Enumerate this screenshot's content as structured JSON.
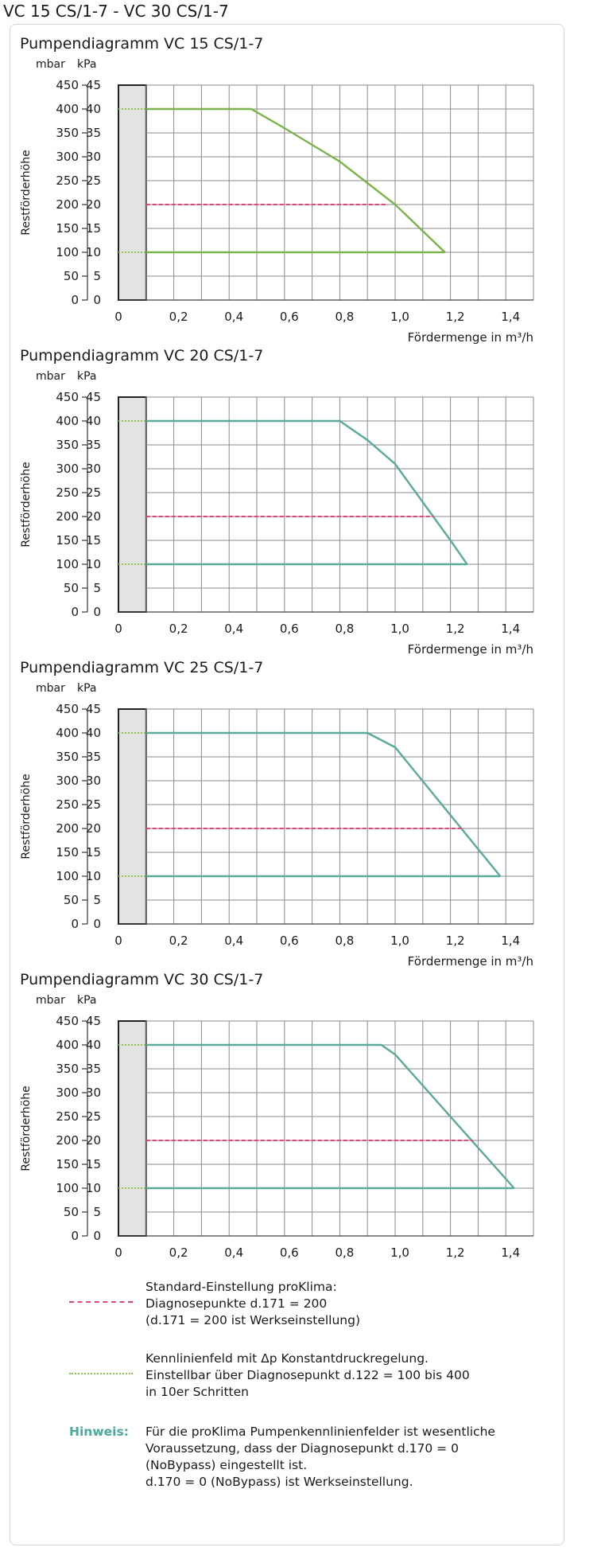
{
  "page": {
    "title": "VC 15 CS/1-7 - VC 30 CS/1-7"
  },
  "colors": {
    "standard": "#d9487f",
    "constant": "#8fc24a",
    "curve_vc15": "#7bb34a",
    "curve_other": "#5aa99b",
    "grid": "#8a8a8a",
    "shade": "#e3e3e3"
  },
  "chart_common": {
    "unit_left": "mbar",
    "unit_right": "kPa",
    "ylabel": "Restförderhöhe",
    "xlabel": "Fördermenge in m³/h",
    "y_ticks_mbar": [
      "450",
      "400",
      "350",
      "300",
      "250",
      "200",
      "150",
      "100",
      "50",
      "0"
    ],
    "y_ticks_kpa": [
      "45",
      "40",
      "35",
      "30",
      "25",
      "20",
      "15",
      "10",
      "5",
      "0"
    ],
    "x_ticks": [
      "0",
      "0,2",
      "0,4",
      "0,6",
      "0,8",
      "1,0",
      "1,2",
      "1,4"
    ]
  },
  "chart_data": [
    {
      "type": "line",
      "title": "Pumpendiagramm VC 15 CS/1-7",
      "xlim": [
        0,
        1.5
      ],
      "ylim": [
        0,
        450
      ],
      "shaded_region_x": [
        0,
        0.1
      ],
      "series": [
        {
          "x": [
            0.1,
            0.48,
            0.6,
            0.8,
            1.0,
            1.18
          ],
          "y": [
            400,
            400,
            360,
            290,
            200,
            100
          ]
        },
        {
          "x": [
            0.1,
            1.18
          ],
          "y": [
            100,
            100
          ]
        },
        {
          "x": [
            0.1,
            0.97
          ],
          "y": [
            200,
            200
          ]
        }
      ]
    },
    {
      "type": "line",
      "title": "Pumpendiagramm VC 20 CS/1-7",
      "xlim": [
        0,
        1.5
      ],
      "ylim": [
        0,
        450
      ],
      "shaded_region_x": [
        0,
        0.1
      ],
      "series": [
        {
          "x": [
            0.1,
            0.8,
            0.9,
            1.0,
            1.2,
            1.26
          ],
          "y": [
            400,
            400,
            360,
            310,
            150,
            100
          ]
        },
        {
          "x": [
            0.1,
            1.26
          ],
          "y": [
            100,
            100
          ]
        },
        {
          "x": [
            0.1,
            1.14
          ],
          "y": [
            200,
            200
          ]
        }
      ]
    },
    {
      "type": "line",
      "title": "Pumpendiagramm VC 25 CS/1-7",
      "xlim": [
        0,
        1.5
      ],
      "ylim": [
        0,
        450
      ],
      "shaded_region_x": [
        0,
        0.1
      ],
      "series": [
        {
          "x": [
            0.1,
            0.9,
            1.0,
            1.38
          ],
          "y": [
            400,
            400,
            370,
            100
          ]
        },
        {
          "x": [
            0.1,
            1.38
          ],
          "y": [
            100,
            100
          ]
        },
        {
          "x": [
            0.1,
            1.25
          ],
          "y": [
            200,
            200
          ]
        }
      ]
    },
    {
      "type": "line",
      "title": "Pumpendiagramm VC 30 CS/1-7",
      "xlim": [
        0,
        1.5
      ],
      "ylim": [
        0,
        450
      ],
      "shaded_region_x": [
        0,
        0.1
      ],
      "series": [
        {
          "x": [
            0.1,
            0.95,
            1.0,
            1.43
          ],
          "y": [
            400,
            400,
            380,
            100
          ]
        },
        {
          "x": [
            0.1,
            1.43
          ],
          "y": [
            100,
            100
          ]
        },
        {
          "x": [
            0.1,
            1.28
          ],
          "y": [
            200,
            200
          ]
        }
      ]
    }
  ],
  "legend": {
    "standard_lines": [
      "Standard-Einstellung proKlima:",
      "Diagnosepunkte d.171 = 200",
      "(d.171 = 200 ist Werkseinstellung)"
    ],
    "constant_lines": [
      "Kennlinienfeld mit Δp Konstantdruckregelung.",
      "Einstellbar über Diagnosepunkt d.122 = 100 bis 400",
      "in 10er Schritten"
    ],
    "note_label": "Hinweis:",
    "note_lines": [
      "Für die proKlima Pumpenkennlinienfelder ist wesentliche",
      "Voraussetzung, dass der Diagnosepunkt d.170 = 0",
      "(NoBypass) eingestellt ist.",
      "d.170 = 0 (NoBypass) ist Werkseinstellung."
    ]
  }
}
